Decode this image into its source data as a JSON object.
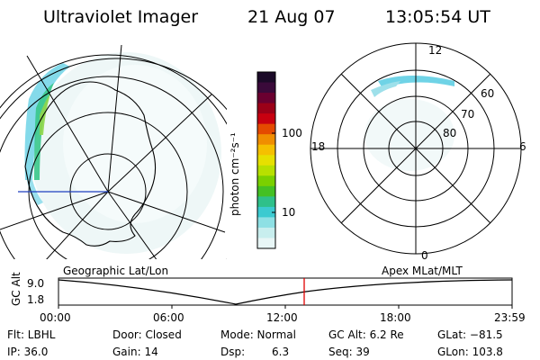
{
  "header": {
    "instrument": "Ultraviolet Imager",
    "date": "21 Aug 07",
    "time": "13:05:54 UT"
  },
  "colorbar": {
    "unit_label": "photon cm⁻²s⁻¹",
    "ticks": [
      "100",
      "10"
    ],
    "colors_top_to_bottom": [
      "#1b0a28",
      "#3a0a3a",
      "#6a0030",
      "#9b0018",
      "#c80010",
      "#e44a00",
      "#f08e00",
      "#f5c000",
      "#e6e000",
      "#b7e000",
      "#7ad000",
      "#44c024",
      "#2fc08a",
      "#3ccad0",
      "#8ee0e4",
      "#c8eeee",
      "#e8f6f6"
    ]
  },
  "left_map": {
    "label": "Geographic Lat/Lon"
  },
  "right_map": {
    "label": "Apex MLat/MLT",
    "lat_labels": [
      "60",
      "70",
      "80"
    ],
    "mlt_labels": {
      "top": "12",
      "left": "18",
      "right": "6",
      "bottom": "0"
    }
  },
  "timeline": {
    "y_axis_label": "GC Alt",
    "y_ticks": [
      "9.0",
      "1.8"
    ],
    "x_ticks": [
      "00:00",
      "06:00",
      "12:00",
      "18:00",
      "23:59"
    ],
    "current_time_marker_color": "#e00000"
  },
  "info": {
    "filter": "Flt: LBHL",
    "ip": "IP: 36.0",
    "door": "Door: Closed",
    "gain": "Gain: 14",
    "mode": "Mode: Normal",
    "dsp_label": "Dsp:",
    "dsp_value": "6.3",
    "gc_alt": "GC Alt: 6.2 Re",
    "seq": "Seq: 39",
    "glat": "GLat: −81.5",
    "glon": "GLon: 103.8"
  }
}
